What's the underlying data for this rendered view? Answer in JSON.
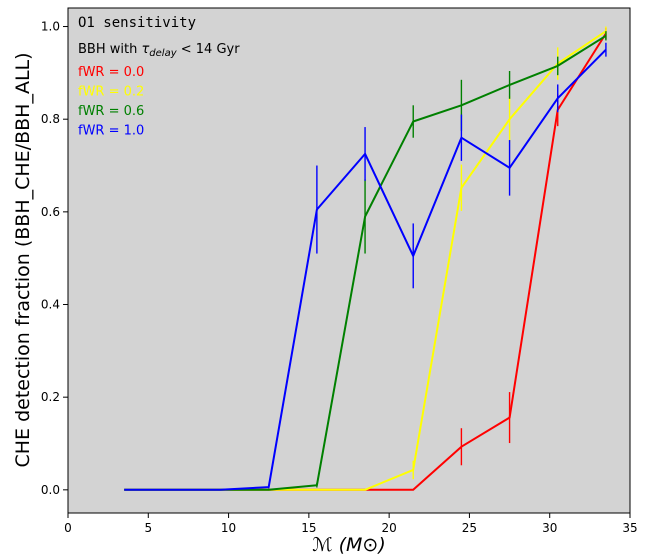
{
  "chart_data": {
    "type": "line",
    "title": "",
    "xlabel": "ℳ (M⊙)",
    "ylabel": "CHE detection fraction (BBH_CHE/BBH_ALL)",
    "xlim": [
      0,
      35
    ],
    "ylim": [
      -0.05,
      1.04
    ],
    "x_ticks": [
      0,
      5,
      10,
      15,
      20,
      25,
      30,
      35
    ],
    "y_ticks": [
      0.0,
      0.2,
      0.4,
      0.6,
      0.8,
      1.0
    ],
    "grid": false,
    "background": "#d3d3d3",
    "annotations": {
      "sensitivity": "O1 sensitivity",
      "delay_prefix": "BBH with ",
      "delay_symbol": "τ",
      "delay_sub": "delay",
      "delay_suffix": " < 14 Gyr"
    },
    "x": [
      3.5,
      6.5,
      9.5,
      12.5,
      15.5,
      18.5,
      21.5,
      24.5,
      27.5,
      30.5,
      33.5
    ],
    "series": [
      {
        "name": "fWR = 0.0",
        "color": "#ff0000",
        "values": [
          0,
          0,
          0,
          0,
          0,
          0,
          0,
          0.093,
          0.156,
          0.82,
          0.985
        ],
        "err": [
          0,
          0,
          0,
          0,
          0,
          0,
          0,
          0.04,
          0.055,
          0.035,
          0.012
        ]
      },
      {
        "name": "fWR = 0.2",
        "color": "#ffff00",
        "values": [
          0,
          0,
          0,
          0,
          0,
          0,
          0.043,
          0.652,
          0.8,
          0.92,
          0.99
        ],
        "err": [
          0,
          0,
          0,
          0,
          0,
          0,
          0.02,
          0.05,
          0.05,
          0.035,
          0.01
        ]
      },
      {
        "name": "fWR = 0.6",
        "color": "#008000",
        "values": [
          0,
          0,
          0,
          0,
          0.01,
          0.59,
          0.795,
          0.83,
          0.874,
          0.915,
          0.98
        ],
        "err": [
          0,
          0,
          0,
          0,
          0.005,
          0.08,
          0.035,
          0.055,
          0.03,
          0.02,
          0.01
        ]
      },
      {
        "name": "fWR = 1.0",
        "color": "#0000ff",
        "values": [
          0,
          0,
          0,
          0.006,
          0.605,
          0.725,
          0.505,
          0.76,
          0.695,
          0.845,
          0.95
        ],
        "err": [
          0,
          0,
          0,
          0.003,
          0.095,
          0.058,
          0.07,
          0.05,
          0.06,
          0.03,
          0.015
        ]
      }
    ]
  }
}
